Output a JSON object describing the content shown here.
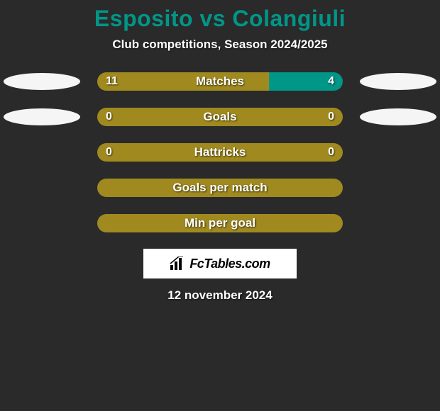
{
  "title": "Esposito vs Colangiuli",
  "subtitle": "Club competitions, Season 2024/2025",
  "colors": {
    "background": "#2a2a2a",
    "title_color": "#009688",
    "text_color": "#ffffff",
    "ellipse_left": "#f5f5f5",
    "ellipse_right": "#f5f5f5",
    "bar_olive": "#a08a1f",
    "bar_teal": "#009688",
    "badge_bg": "#ffffff",
    "badge_text": "#000000"
  },
  "stats": [
    {
      "label": "Matches",
      "left_value": "11",
      "right_value": "4",
      "left_pct": 70,
      "right_pct": 30,
      "left_color": "#a08a1f",
      "right_color": "#009688",
      "show_ellipse_left": true,
      "show_ellipse_right": true
    },
    {
      "label": "Goals",
      "left_value": "0",
      "right_value": "0",
      "left_pct": 100,
      "right_pct": 0,
      "left_color": "#a08a1f",
      "right_color": "#009688",
      "show_ellipse_left": true,
      "show_ellipse_right": true
    },
    {
      "label": "Hattricks",
      "left_value": "0",
      "right_value": "0",
      "left_pct": 100,
      "right_pct": 0,
      "left_color": "#a08a1f",
      "right_color": "#009688",
      "show_ellipse_left": false,
      "show_ellipse_right": false
    },
    {
      "label": "Goals per match",
      "left_value": "",
      "right_value": "",
      "left_pct": 100,
      "right_pct": 0,
      "left_color": "#a08a1f",
      "right_color": "#009688",
      "show_ellipse_left": false,
      "show_ellipse_right": false
    },
    {
      "label": "Min per goal",
      "left_value": "",
      "right_value": "",
      "left_pct": 100,
      "right_pct": 0,
      "left_color": "#a08a1f",
      "right_color": "#009688",
      "show_ellipse_left": false,
      "show_ellipse_right": false
    }
  ],
  "badge_text": "FcTables.com",
  "date": "12 november 2024"
}
